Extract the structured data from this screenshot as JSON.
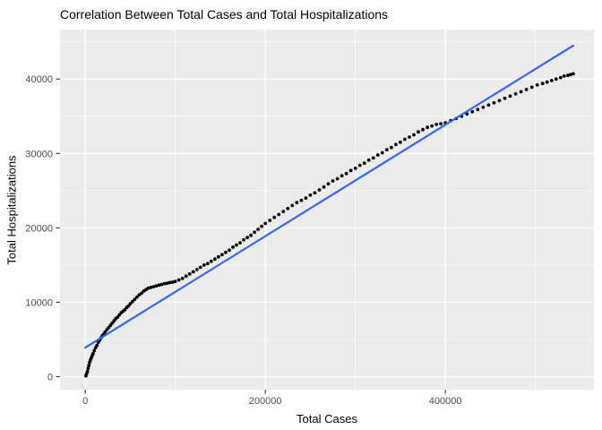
{
  "chart_data": {
    "type": "scatter",
    "title": "Correlation Between Total Cases and Total Hospitalizations",
    "xlabel": "Total Cases",
    "ylabel": "Total Hospitalizations",
    "xlim": [
      -28000,
      565000
    ],
    "ylim": [
      -1750,
      46650
    ],
    "x_ticks": {
      "values": [
        0,
        200000,
        400000
      ],
      "labels": [
        "0",
        "200000",
        "400000"
      ]
    },
    "y_ticks": {
      "values": [
        0,
        10000,
        20000,
        30000,
        40000
      ],
      "labels": [
        "0",
        "10000",
        "20000",
        "30000",
        "40000"
      ]
    },
    "x_minor": [
      100000,
      300000,
      500000
    ],
    "y_minor": [
      5000,
      15000,
      25000,
      35000,
      45000
    ],
    "grid": "major+minor",
    "legend": "none",
    "colors": {
      "panel_bg": "#EBEBEB",
      "grid": "#FFFFFF",
      "points": "#000000",
      "fit_line": "#3366FF",
      "tick_labels": "#4D4D4D",
      "tick_marks": "#333333",
      "titles": "#000000",
      "figure_bg": "#FFFFFF"
    },
    "series": [
      {
        "name": "observations",
        "kind": "points",
        "points": [
          [
            800,
            100
          ],
          [
            1600,
            400
          ],
          [
            2400,
            700
          ],
          [
            3200,
            1100
          ],
          [
            4000,
            1500
          ],
          [
            4800,
            1900
          ],
          [
            5600,
            2200
          ],
          [
            6600,
            2500
          ],
          [
            7600,
            2800
          ],
          [
            8800,
            3100
          ],
          [
            10000,
            3500
          ],
          [
            11500,
            3900
          ],
          [
            13000,
            4200
          ],
          [
            14500,
            4600
          ],
          [
            16000,
            4900
          ],
          [
            17500,
            5200
          ],
          [
            19000,
            5500
          ],
          [
            20500,
            5700
          ],
          [
            22000,
            6000
          ],
          [
            24000,
            6300
          ],
          [
            26000,
            6600
          ],
          [
            28000,
            6900
          ],
          [
            30000,
            7200
          ],
          [
            32000,
            7500
          ],
          [
            34000,
            7800
          ],
          [
            36000,
            8000
          ],
          [
            38000,
            8300
          ],
          [
            40000,
            8600
          ],
          [
            42000,
            8800
          ],
          [
            44000,
            9000
          ],
          [
            46000,
            9300
          ],
          [
            48000,
            9500
          ],
          [
            50000,
            9800
          ],
          [
            52500,
            10100
          ],
          [
            55000,
            10400
          ],
          [
            57500,
            10700
          ],
          [
            60000,
            11000
          ],
          [
            62500,
            11200
          ],
          [
            65000,
            11500
          ],
          [
            67500,
            11700
          ],
          [
            70000,
            11900
          ],
          [
            73000,
            12000
          ],
          [
            76000,
            12100
          ],
          [
            79000,
            12200
          ],
          [
            82000,
            12300
          ],
          [
            85000,
            12400
          ],
          [
            88000,
            12500
          ],
          [
            91000,
            12550
          ],
          [
            94000,
            12650
          ],
          [
            97000,
            12700
          ],
          [
            100000,
            12800
          ],
          [
            104000,
            13000
          ],
          [
            108000,
            13200
          ],
          [
            112000,
            13500
          ],
          [
            116000,
            13800
          ],
          [
            120000,
            14100
          ],
          [
            124000,
            14400
          ],
          [
            128000,
            14700
          ],
          [
            132000,
            15000
          ],
          [
            136000,
            15200
          ],
          [
            140000,
            15500
          ],
          [
            144000,
            15800
          ],
          [
            148000,
            16100
          ],
          [
            152000,
            16400
          ],
          [
            156000,
            16700
          ],
          [
            160000,
            17000
          ],
          [
            164000,
            17400
          ],
          [
            168000,
            17700
          ],
          [
            172000,
            18000
          ],
          [
            176000,
            18400
          ],
          [
            180000,
            18700
          ],
          [
            184000,
            19000
          ],
          [
            188000,
            19400
          ],
          [
            192000,
            19800
          ],
          [
            196000,
            20200
          ],
          [
            200000,
            20600
          ],
          [
            205000,
            21000
          ],
          [
            210000,
            21400
          ],
          [
            215000,
            21800
          ],
          [
            220000,
            22200
          ],
          [
            225000,
            22600
          ],
          [
            230000,
            23000
          ],
          [
            235000,
            23400
          ],
          [
            240000,
            23700
          ],
          [
            245000,
            24000
          ],
          [
            250000,
            24400
          ],
          [
            255000,
            24700
          ],
          [
            260000,
            25100
          ],
          [
            265000,
            25500
          ],
          [
            270000,
            25900
          ],
          [
            275000,
            26300
          ],
          [
            280000,
            26600
          ],
          [
            285000,
            27000
          ],
          [
            290000,
            27300
          ],
          [
            295000,
            27700
          ],
          [
            300000,
            28000
          ],
          [
            305000,
            28400
          ],
          [
            310000,
            28700
          ],
          [
            315000,
            29100
          ],
          [
            320000,
            29400
          ],
          [
            325000,
            29800
          ],
          [
            330000,
            30100
          ],
          [
            335000,
            30500
          ],
          [
            340000,
            30800
          ],
          [
            345000,
            31200
          ],
          [
            350000,
            31500
          ],
          [
            355000,
            31900
          ],
          [
            360000,
            32200
          ],
          [
            365000,
            32500
          ],
          [
            370000,
            32900
          ],
          [
            375000,
            33200
          ],
          [
            380000,
            33500
          ],
          [
            385000,
            33700
          ],
          [
            390000,
            33900
          ],
          [
            395000,
            34000
          ],
          [
            400000,
            34100
          ],
          [
            406000,
            34400
          ],
          [
            412000,
            34700
          ],
          [
            418000,
            35000
          ],
          [
            424000,
            35300
          ],
          [
            430000,
            35600
          ],
          [
            436000,
            35900
          ],
          [
            442000,
            36200
          ],
          [
            448000,
            36500
          ],
          [
            454000,
            36800
          ],
          [
            460000,
            37100
          ],
          [
            466000,
            37400
          ],
          [
            472000,
            37700
          ],
          [
            478000,
            38000
          ],
          [
            484000,
            38300
          ],
          [
            490000,
            38600
          ],
          [
            496000,
            38900
          ],
          [
            502000,
            39200
          ],
          [
            508000,
            39400
          ],
          [
            513000,
            39600
          ],
          [
            518000,
            39800
          ],
          [
            523000,
            40000
          ],
          [
            528000,
            40200
          ],
          [
            532000,
            40400
          ],
          [
            536000,
            40500
          ],
          [
            539000,
            40600
          ],
          [
            542000,
            40700
          ]
        ]
      },
      {
        "name": "linear-fit",
        "kind": "line",
        "points": [
          [
            0,
            3900
          ],
          [
            542000,
            44500
          ]
        ]
      }
    ]
  }
}
